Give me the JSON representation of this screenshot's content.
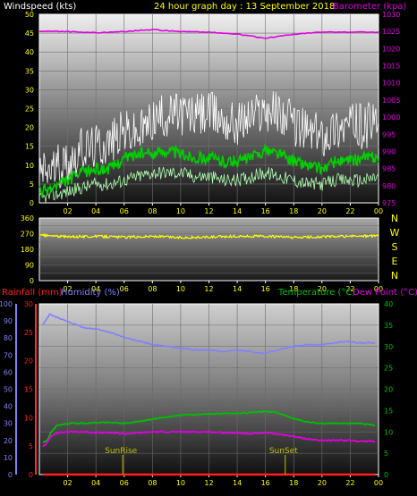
{
  "header": {
    "left_label": "Windspeed (kts)",
    "center_label": "24 hour graph day : 13 September 2018",
    "right_label": "Barometer (kpa)"
  },
  "colors": {
    "windspeed_label": "#ffffff",
    "center_label": "#ffff00",
    "barometer": "#e000e0",
    "gust": "#ffffff",
    "wind_avg": "#00d000",
    "wind_min": "#b0ffb0",
    "direction": "#ffff00",
    "rainfall": "#ff2020",
    "humidity": "#8080ff",
    "temperature": "#00c000",
    "dewpoint": "#e000e0",
    "sun": "#c0c000",
    "compass": "#ffff00",
    "tick_yellow": "#ffff00"
  },
  "chart_data": [
    {
      "type": "line",
      "name": "wind-barometer",
      "x_ticks": [
        "02",
        "04",
        "06",
        "08",
        "10",
        "12",
        "14",
        "16",
        "18",
        "20",
        "22",
        "00"
      ],
      "left_axis": {
        "label": "Windspeed (kts)",
        "ylim": [
          0,
          50
        ],
        "ticks": [
          "0",
          "5",
          "10",
          "15",
          "20",
          "25",
          "30",
          "35",
          "40",
          "45",
          "50"
        ]
      },
      "right_axis": {
        "label": "Barometer (kpa)",
        "ylim": [
          975,
          1030
        ],
        "ticks": [
          "975",
          "980",
          "985",
          "990",
          "995",
          "1000",
          "1005",
          "1010",
          "1015",
          "1020",
          "1025",
          "1030"
        ]
      },
      "grid": true,
      "series": [
        {
          "name": "Barometer",
          "axis": "right",
          "x": [
            0,
            2,
            4,
            6,
            8,
            10,
            12,
            14,
            16,
            18,
            20,
            22,
            24
          ],
          "values": [
            1025,
            1025,
            1024.6,
            1025,
            1025.5,
            1025,
            1024.8,
            1024.2,
            1023,
            1024.2,
            1024.8,
            1024.8,
            1024.8
          ]
        },
        {
          "name": "Gust",
          "axis": "left",
          "x": [
            0,
            1,
            2,
            3,
            4,
            5,
            6,
            7,
            8,
            9,
            10,
            11,
            12,
            13,
            14,
            15,
            16,
            17,
            18,
            19,
            20,
            21,
            22,
            23,
            24
          ],
          "values": [
            8,
            9,
            11,
            14,
            15,
            16,
            19,
            18,
            22,
            23,
            24,
            23,
            24,
            22,
            21,
            23,
            25,
            24,
            21,
            19,
            18,
            20,
            21,
            20,
            22
          ]
        },
        {
          "name": "Average",
          "axis": "left",
          "x": [
            0,
            1,
            2,
            3,
            4,
            5,
            6,
            7,
            8,
            9,
            10,
            11,
            12,
            13,
            14,
            15,
            16,
            17,
            18,
            19,
            20,
            21,
            22,
            23,
            24
          ],
          "values": [
            3,
            4,
            6,
            8,
            9,
            9,
            12,
            13,
            13,
            14,
            13,
            12,
            12,
            11,
            11,
            12,
            14,
            13,
            11,
            10,
            9,
            11,
            11,
            12,
            12
          ]
        },
        {
          "name": "Min",
          "axis": "left",
          "x": [
            0,
            1,
            2,
            3,
            4,
            5,
            6,
            7,
            8,
            9,
            10,
            11,
            12,
            13,
            14,
            15,
            16,
            17,
            18,
            19,
            20,
            21,
            22,
            23,
            24
          ],
          "values": [
            1,
            2,
            3,
            4,
            5,
            5,
            6,
            7,
            8,
            8,
            8,
            7,
            7,
            6,
            6,
            7,
            8,
            7,
            6,
            5,
            5,
            6,
            6,
            6,
            7
          ]
        }
      ]
    },
    {
      "type": "line",
      "name": "wind-direction",
      "x_ticks": [
        "02",
        "04",
        "06",
        "08",
        "10",
        "12",
        "14",
        "16",
        "18",
        "20",
        "22",
        "00"
      ],
      "left_axis": {
        "ylim": [
          0,
          360
        ],
        "ticks": [
          "0",
          "90",
          "180",
          "270",
          "360"
        ]
      },
      "compass": [
        "N",
        "W",
        "S",
        "E",
        "N"
      ],
      "grid": true,
      "series": [
        {
          "name": "Direction",
          "x": [
            0,
            2,
            4,
            6,
            8,
            10,
            12,
            14,
            16,
            18,
            20,
            22,
            24
          ],
          "values": [
            262,
            252,
            255,
            250,
            255,
            248,
            250,
            255,
            255,
            248,
            252,
            255,
            258
          ]
        }
      ]
    },
    {
      "type": "line",
      "name": "temperature-humidity",
      "x_ticks": [
        "02",
        "04",
        "06",
        "08",
        "10",
        "12",
        "14",
        "16",
        "18",
        "20",
        "22",
        "00"
      ],
      "top_labels": {
        "rainfall": "Rainfall (mm)",
        "humidity": "Humidity (%)",
        "temperature": "Temperature (°C)",
        "dewpoint": "Dew Point (°C)"
      },
      "rain_axis": {
        "ylim": [
          0,
          30
        ],
        "ticks": [
          "0",
          "5",
          "10",
          "15",
          "20",
          "25",
          "30"
        ]
      },
      "humidity_axis": {
        "ylim": [
          0,
          100
        ],
        "ticks": [
          "0",
          "10",
          "20",
          "30",
          "40",
          "50",
          "60",
          "70",
          "80",
          "90",
          "100"
        ]
      },
      "temp_axis": {
        "ylim": [
          0,
          40
        ],
        "ticks": [
          "0",
          "5",
          "10",
          "15",
          "20",
          "25",
          "30",
          "35",
          "40"
        ]
      },
      "annotations": [
        {
          "text": "SunRise",
          "x": 5.9
        },
        {
          "text": "SunSet",
          "x": 17.4
        }
      ],
      "grid": true,
      "series": [
        {
          "name": "Humidity",
          "axis": "humidity",
          "x": [
            0,
            0.5,
            1,
            2,
            3,
            4,
            5,
            6,
            7,
            8,
            9,
            10,
            11,
            12,
            13,
            14,
            15,
            16,
            17,
            18,
            19,
            20,
            21,
            22,
            23,
            24
          ],
          "values": [
            88,
            94,
            92,
            89,
            86,
            85,
            83,
            80,
            78,
            76,
            75,
            74,
            73,
            73,
            72,
            73,
            72,
            71,
            73,
            75,
            76,
            76,
            77,
            78,
            77,
            77
          ]
        },
        {
          "name": "Temperature",
          "axis": "temp",
          "x": [
            0,
            0.3,
            0.6,
            1,
            2,
            3,
            4,
            5,
            6,
            7,
            8,
            9,
            10,
            11,
            12,
            13,
            14,
            15,
            16,
            17,
            18,
            19,
            20,
            21,
            22,
            23,
            24
          ],
          "values": [
            7.5,
            8,
            10,
            11.5,
            12,
            12,
            12.2,
            12.2,
            12,
            12.5,
            13,
            13.5,
            14,
            14,
            14.2,
            14.3,
            14.3,
            14.5,
            14.8,
            14.5,
            13.2,
            12.4,
            12,
            12,
            12,
            12,
            11.5
          ]
        },
        {
          "name": "Dew Point",
          "axis": "temp",
          "x": [
            0,
            0.3,
            0.6,
            1,
            2,
            3,
            4,
            5,
            6,
            7,
            8,
            9,
            10,
            11,
            12,
            13,
            14,
            15,
            16,
            17,
            18,
            19,
            20,
            21,
            22,
            23,
            24
          ],
          "values": [
            6.5,
            7.5,
            9,
            9.8,
            10,
            10,
            9.8,
            9.8,
            9.5,
            9.8,
            10,
            10,
            10,
            10,
            10,
            9.8,
            9.8,
            9.5,
            9.8,
            9.5,
            9,
            8.4,
            8,
            8,
            8,
            7.8,
            7.8
          ]
        },
        {
          "name": "Rainfall",
          "axis": "rain",
          "x": [
            0,
            24
          ],
          "values": [
            0,
            0
          ]
        }
      ]
    }
  ]
}
